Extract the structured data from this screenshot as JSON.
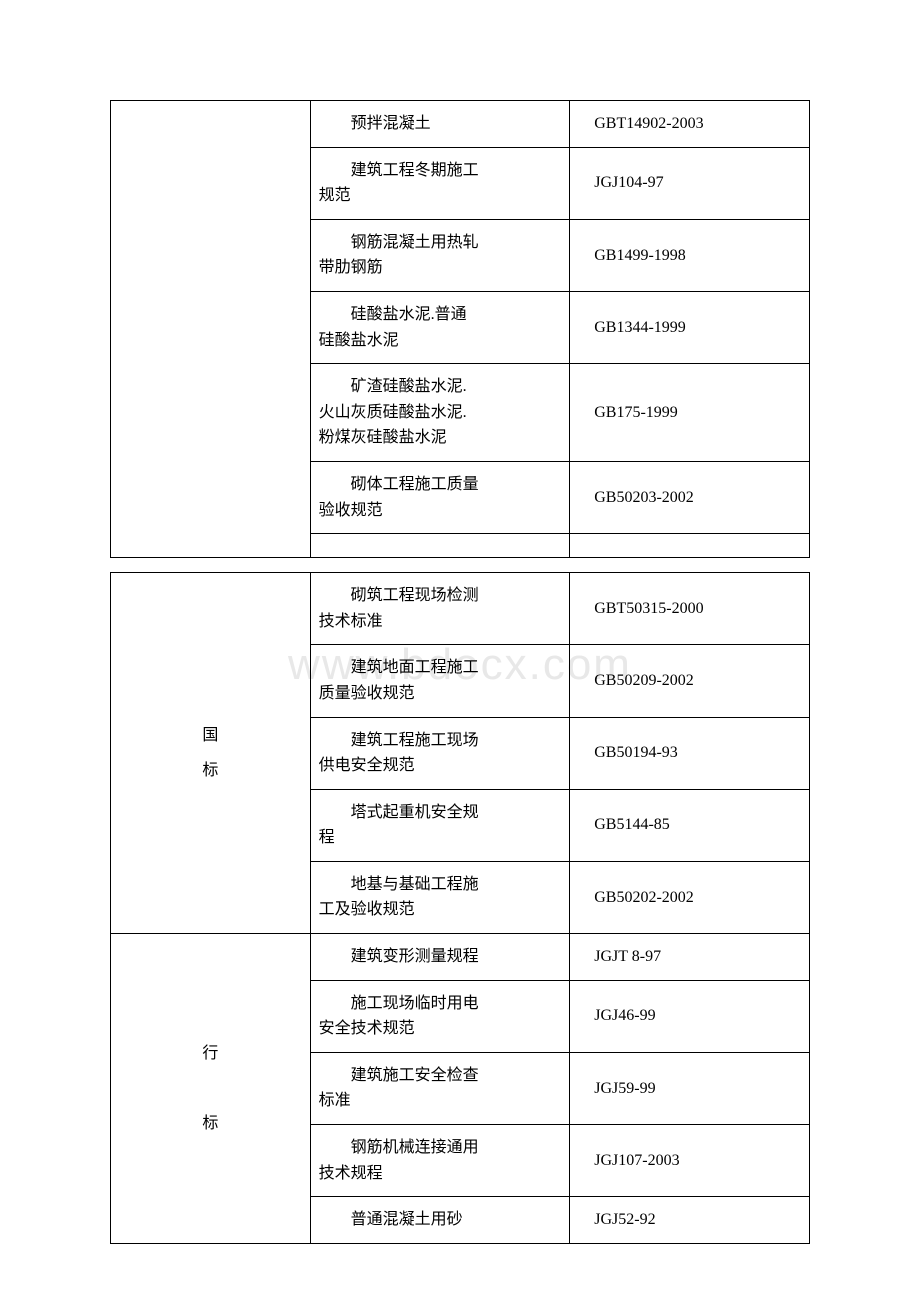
{
  "watermark": "www.bdocx.com",
  "table1": {
    "rows": [
      {
        "name_line1": "预拌混凝土",
        "name_line2": "",
        "name_line3": "",
        "code": "GBT14902-2003"
      },
      {
        "name_line1": "建筑工程冬期施工",
        "name_line2": "规范",
        "name_line3": "",
        "code": "JGJ104-97"
      },
      {
        "name_line1": "钢筋混凝土用热轧",
        "name_line2": "带肋钢筋",
        "name_line3": "",
        "code": "GB1499-1998"
      },
      {
        "name_line1": "硅酸盐水泥.普通",
        "name_line2": "硅酸盐水泥",
        "name_line3": "",
        "code": "GB1344-1999"
      },
      {
        "name_line1": "矿渣硅酸盐水泥.",
        "name_line2": "火山灰质硅酸盐水泥.",
        "name_line3": "粉煤灰硅酸盐水泥",
        "code": "GB175-1999"
      },
      {
        "name_line1": "砌体工程施工质量",
        "name_line2": "验收规范",
        "name_line3": "",
        "code": "GB50203-2002"
      }
    ]
  },
  "table2": {
    "group1": {
      "category_line1": "国",
      "category_line2": "标",
      "rows": [
        {
          "name_line1": "砌筑工程现场检测",
          "name_line2": "技术标准",
          "code": "GBT50315-2000"
        },
        {
          "name_line1": "建筑地面工程施工",
          "name_line2": "质量验收规范",
          "code": "GB50209-2002"
        },
        {
          "name_line1": "建筑工程施工现场",
          "name_line2": "供电安全规范",
          "code": "GB50194-93"
        },
        {
          "name_line1": "塔式起重机安全规",
          "name_line2": "程",
          "code": "GB5144-85"
        },
        {
          "name_line1": "地基与基础工程施",
          "name_line2": "工及验收规范",
          "code": "GB50202-2002"
        }
      ]
    },
    "group2": {
      "category_line1": "行",
      "category_line2": "标",
      "rows": [
        {
          "name_line1": "建筑变形测量规程",
          "name_line2": "",
          "code": "JGJT 8-97"
        },
        {
          "name_line1": "施工现场临时用电",
          "name_line2": "安全技术规范",
          "code": "JGJ46-99"
        },
        {
          "name_line1": "建筑施工安全检查",
          "name_line2": "标准",
          "code": "JGJ59-99"
        },
        {
          "name_line1": "钢筋机械连接通用",
          "name_line2": "技术规程",
          "code": "JGJ107-2003"
        },
        {
          "name_line1": "普通混凝土用砂",
          "name_line2": "",
          "code": "JGJ52-92"
        }
      ]
    }
  },
  "styling": {
    "page_bg": "#ffffff",
    "border_color": "#000000",
    "text_color": "#000000",
    "watermark_color": "#e8e8e8",
    "font_size_body": 16,
    "font_size_watermark": 44,
    "col_widths": {
      "category": 200,
      "name": 260,
      "code": 240
    }
  }
}
